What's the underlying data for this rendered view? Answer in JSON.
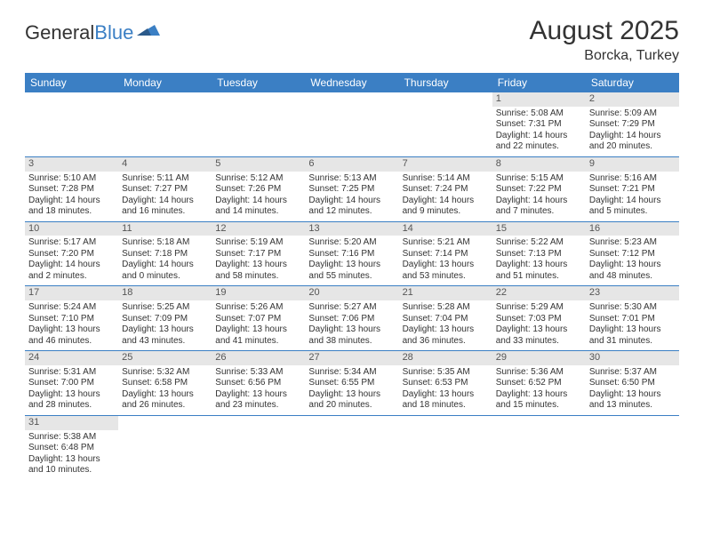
{
  "logo": {
    "text1": "General",
    "text2": "Blue",
    "icon_color": "#3b7fc4"
  },
  "title": "August 2025",
  "location": "Borcka, Turkey",
  "header_bg": "#3b7fc4",
  "daynum_bg": "#e6e6e6",
  "weekdays": [
    "Sunday",
    "Monday",
    "Tuesday",
    "Wednesday",
    "Thursday",
    "Friday",
    "Saturday"
  ],
  "weeks": [
    [
      null,
      null,
      null,
      null,
      null,
      {
        "n": "1",
        "sr": "Sunrise: 5:08 AM",
        "ss": "Sunset: 7:31 PM",
        "dl": "Daylight: 14 hours and 22 minutes."
      },
      {
        "n": "2",
        "sr": "Sunrise: 5:09 AM",
        "ss": "Sunset: 7:29 PM",
        "dl": "Daylight: 14 hours and 20 minutes."
      }
    ],
    [
      {
        "n": "3",
        "sr": "Sunrise: 5:10 AM",
        "ss": "Sunset: 7:28 PM",
        "dl": "Daylight: 14 hours and 18 minutes."
      },
      {
        "n": "4",
        "sr": "Sunrise: 5:11 AM",
        "ss": "Sunset: 7:27 PM",
        "dl": "Daylight: 14 hours and 16 minutes."
      },
      {
        "n": "5",
        "sr": "Sunrise: 5:12 AM",
        "ss": "Sunset: 7:26 PM",
        "dl": "Daylight: 14 hours and 14 minutes."
      },
      {
        "n": "6",
        "sr": "Sunrise: 5:13 AM",
        "ss": "Sunset: 7:25 PM",
        "dl": "Daylight: 14 hours and 12 minutes."
      },
      {
        "n": "7",
        "sr": "Sunrise: 5:14 AM",
        "ss": "Sunset: 7:24 PM",
        "dl": "Daylight: 14 hours and 9 minutes."
      },
      {
        "n": "8",
        "sr": "Sunrise: 5:15 AM",
        "ss": "Sunset: 7:22 PM",
        "dl": "Daylight: 14 hours and 7 minutes."
      },
      {
        "n": "9",
        "sr": "Sunrise: 5:16 AM",
        "ss": "Sunset: 7:21 PM",
        "dl": "Daylight: 14 hours and 5 minutes."
      }
    ],
    [
      {
        "n": "10",
        "sr": "Sunrise: 5:17 AM",
        "ss": "Sunset: 7:20 PM",
        "dl": "Daylight: 14 hours and 2 minutes."
      },
      {
        "n": "11",
        "sr": "Sunrise: 5:18 AM",
        "ss": "Sunset: 7:18 PM",
        "dl": "Daylight: 14 hours and 0 minutes."
      },
      {
        "n": "12",
        "sr": "Sunrise: 5:19 AM",
        "ss": "Sunset: 7:17 PM",
        "dl": "Daylight: 13 hours and 58 minutes."
      },
      {
        "n": "13",
        "sr": "Sunrise: 5:20 AM",
        "ss": "Sunset: 7:16 PM",
        "dl": "Daylight: 13 hours and 55 minutes."
      },
      {
        "n": "14",
        "sr": "Sunrise: 5:21 AM",
        "ss": "Sunset: 7:14 PM",
        "dl": "Daylight: 13 hours and 53 minutes."
      },
      {
        "n": "15",
        "sr": "Sunrise: 5:22 AM",
        "ss": "Sunset: 7:13 PM",
        "dl": "Daylight: 13 hours and 51 minutes."
      },
      {
        "n": "16",
        "sr": "Sunrise: 5:23 AM",
        "ss": "Sunset: 7:12 PM",
        "dl": "Daylight: 13 hours and 48 minutes."
      }
    ],
    [
      {
        "n": "17",
        "sr": "Sunrise: 5:24 AM",
        "ss": "Sunset: 7:10 PM",
        "dl": "Daylight: 13 hours and 46 minutes."
      },
      {
        "n": "18",
        "sr": "Sunrise: 5:25 AM",
        "ss": "Sunset: 7:09 PM",
        "dl": "Daylight: 13 hours and 43 minutes."
      },
      {
        "n": "19",
        "sr": "Sunrise: 5:26 AM",
        "ss": "Sunset: 7:07 PM",
        "dl": "Daylight: 13 hours and 41 minutes."
      },
      {
        "n": "20",
        "sr": "Sunrise: 5:27 AM",
        "ss": "Sunset: 7:06 PM",
        "dl": "Daylight: 13 hours and 38 minutes."
      },
      {
        "n": "21",
        "sr": "Sunrise: 5:28 AM",
        "ss": "Sunset: 7:04 PM",
        "dl": "Daylight: 13 hours and 36 minutes."
      },
      {
        "n": "22",
        "sr": "Sunrise: 5:29 AM",
        "ss": "Sunset: 7:03 PM",
        "dl": "Daylight: 13 hours and 33 minutes."
      },
      {
        "n": "23",
        "sr": "Sunrise: 5:30 AM",
        "ss": "Sunset: 7:01 PM",
        "dl": "Daylight: 13 hours and 31 minutes."
      }
    ],
    [
      {
        "n": "24",
        "sr": "Sunrise: 5:31 AM",
        "ss": "Sunset: 7:00 PM",
        "dl": "Daylight: 13 hours and 28 minutes."
      },
      {
        "n": "25",
        "sr": "Sunrise: 5:32 AM",
        "ss": "Sunset: 6:58 PM",
        "dl": "Daylight: 13 hours and 26 minutes."
      },
      {
        "n": "26",
        "sr": "Sunrise: 5:33 AM",
        "ss": "Sunset: 6:56 PM",
        "dl": "Daylight: 13 hours and 23 minutes."
      },
      {
        "n": "27",
        "sr": "Sunrise: 5:34 AM",
        "ss": "Sunset: 6:55 PM",
        "dl": "Daylight: 13 hours and 20 minutes."
      },
      {
        "n": "28",
        "sr": "Sunrise: 5:35 AM",
        "ss": "Sunset: 6:53 PM",
        "dl": "Daylight: 13 hours and 18 minutes."
      },
      {
        "n": "29",
        "sr": "Sunrise: 5:36 AM",
        "ss": "Sunset: 6:52 PM",
        "dl": "Daylight: 13 hours and 15 minutes."
      },
      {
        "n": "30",
        "sr": "Sunrise: 5:37 AM",
        "ss": "Sunset: 6:50 PM",
        "dl": "Daylight: 13 hours and 13 minutes."
      }
    ],
    [
      {
        "n": "31",
        "sr": "Sunrise: 5:38 AM",
        "ss": "Sunset: 6:48 PM",
        "dl": "Daylight: 13 hours and 10 minutes."
      },
      null,
      null,
      null,
      null,
      null,
      null
    ]
  ]
}
